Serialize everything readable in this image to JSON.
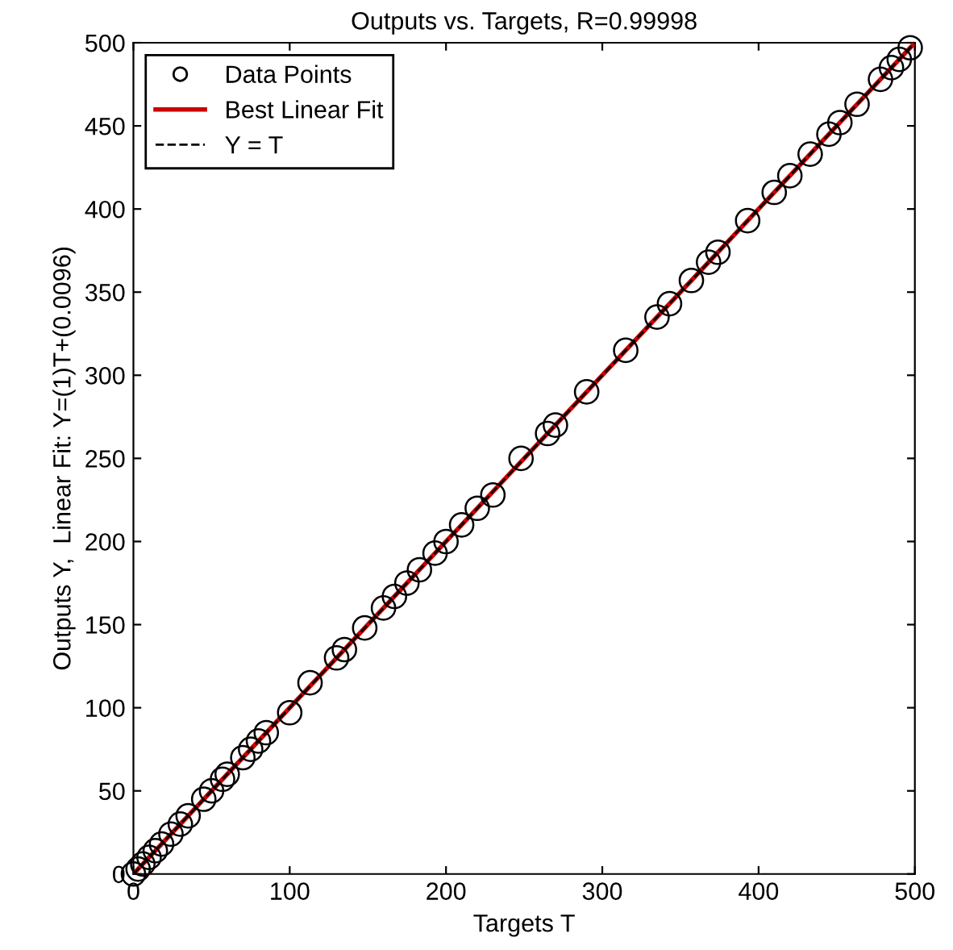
{
  "chart_data": {
    "type": "scatter",
    "title": "Outputs vs. Targets, R=0.99998",
    "xlabel": "Targets T",
    "ylabel": "Outputs Y,  Linear Fit: Y=(1)T+(0.0096)",
    "xlim": [
      0,
      500
    ],
    "ylim": [
      0,
      500
    ],
    "xticks": [
      0,
      100,
      200,
      300,
      400,
      500
    ],
    "yticks": [
      0,
      50,
      100,
      150,
      200,
      250,
      300,
      350,
      400,
      450,
      500
    ],
    "grid": false,
    "legend": "top left",
    "series": [
      {
        "name": "Data Points",
        "marker": "circle",
        "color": "#000000",
        "x": [
          0,
          3,
          6,
          10,
          14,
          18,
          24,
          30,
          35,
          45,
          50,
          57,
          60,
          70,
          75,
          80,
          85,
          100,
          113,
          130,
          135,
          148,
          160,
          167,
          175,
          183,
          193,
          200,
          210,
          220,
          230,
          248,
          265,
          270,
          290,
          315,
          335,
          343,
          357,
          368,
          374,
          393,
          410,
          420,
          433,
          445,
          452,
          463,
          478,
          485,
          490,
          497
        ],
        "values": [
          0,
          3,
          6,
          10,
          14,
          18,
          24,
          30,
          35,
          45,
          50,
          57,
          60,
          70,
          75,
          80,
          85,
          97,
          115,
          130,
          135,
          148,
          160,
          167,
          175,
          183,
          193,
          200,
          210,
          220,
          228,
          250,
          265,
          270,
          290,
          315,
          335,
          343,
          357,
          368,
          374,
          393,
          410,
          420,
          433,
          445,
          452,
          463,
          478,
          485,
          490,
          497
        ]
      },
      {
        "name": "Best Linear Fit",
        "type": "line",
        "line_style": "solid",
        "color": "#cc0000",
        "x": [
          0,
          500
        ],
        "values": [
          0,
          500
        ]
      },
      {
        "name": "Y = T",
        "type": "line",
        "line_style": "dashed",
        "color": "#000000",
        "x": [
          0,
          500
        ],
        "values": [
          0,
          500
        ]
      }
    ]
  }
}
